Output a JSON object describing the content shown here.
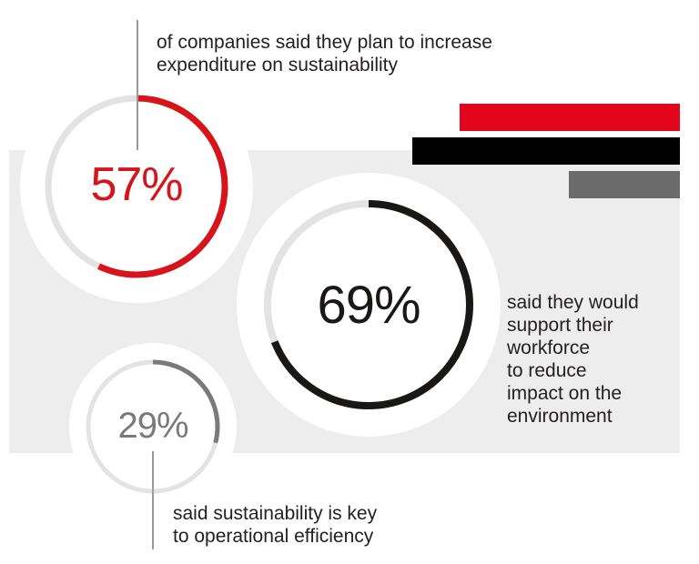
{
  "chart_data": {
    "type": "infographic",
    "stats": [
      {
        "value": 57,
        "label": "57%",
        "caption": [
          "of companies said they plan to increase",
          "expenditure on sustainability"
        ],
        "color": "#d7141a"
      },
      {
        "value": 69,
        "label": "69%",
        "caption": [
          "said they would",
          "support their",
          "workforce",
          "to reduce",
          "impact on the",
          "environment"
        ],
        "color": "#1a1717"
      },
      {
        "value": 29,
        "label": "29%",
        "caption": [
          "said sustainability is key",
          "to operational efficiency"
        ],
        "color": "#7a7a7a"
      }
    ],
    "bars": [
      {
        "color": "#e3051b"
      },
      {
        "color": "#000000"
      },
      {
        "color": "#6b6b6b"
      }
    ],
    "track_color": "#e3e3e3",
    "panel_color": "#ededed"
  }
}
